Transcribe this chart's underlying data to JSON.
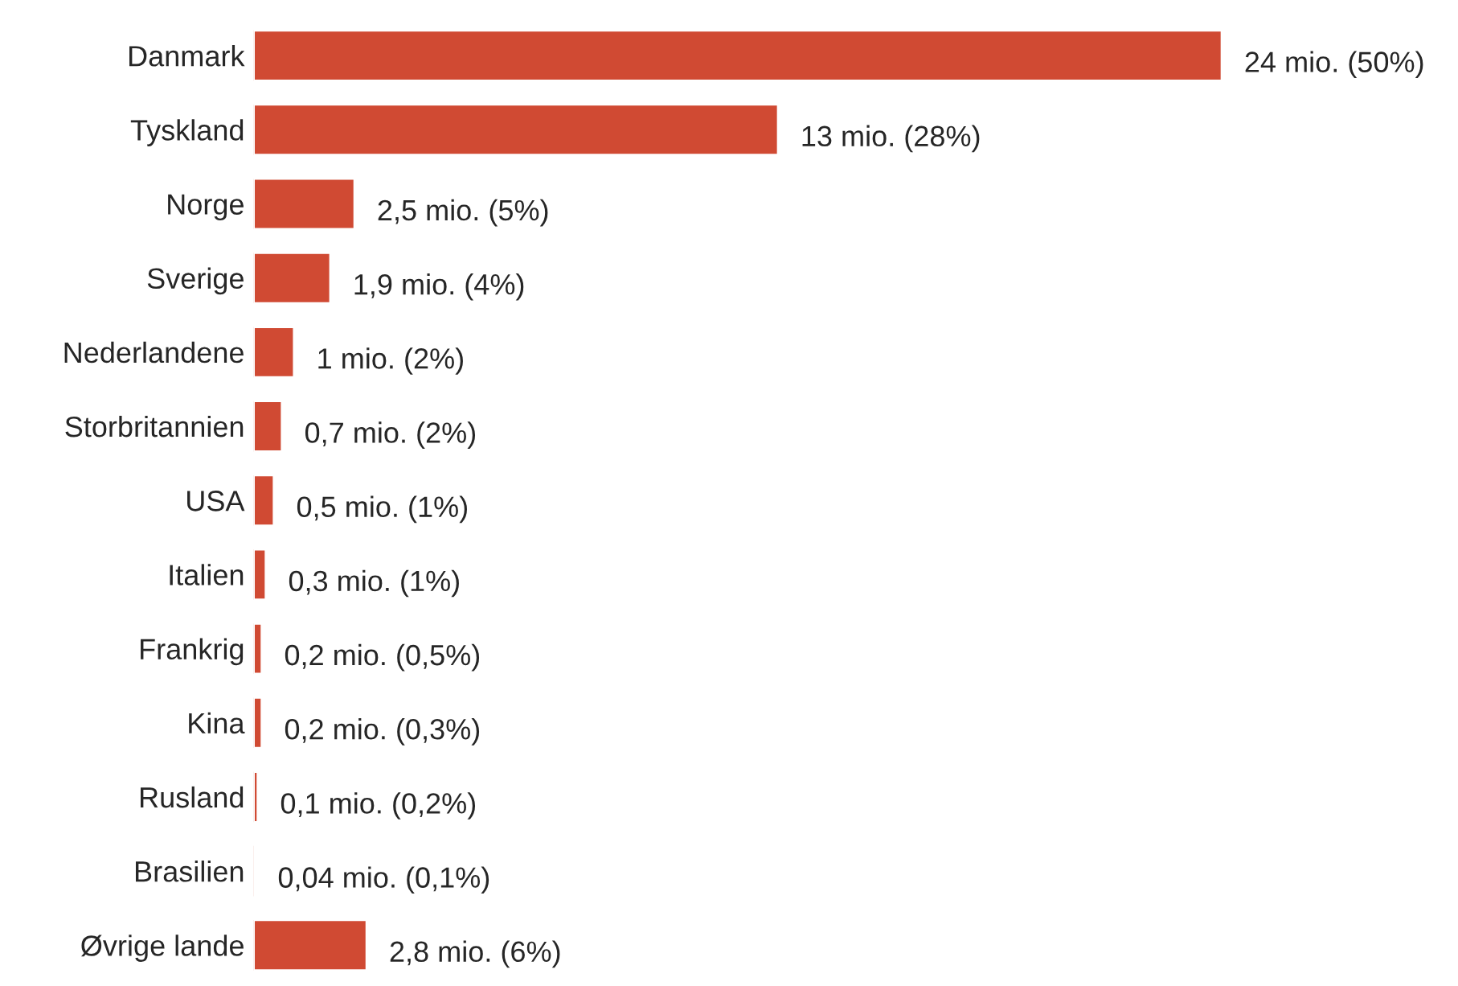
{
  "chart_data": {
    "type": "bar",
    "orientation": "horizontal",
    "categories": [
      "Danmark",
      "Tyskland",
      "Norge",
      "Sverige",
      "Nederlandene",
      "Storbritannien",
      "USA",
      "Italien",
      "Frankrig",
      "Kina",
      "Rusland",
      "Brasilien",
      "Øvrige lande"
    ],
    "values": [
      24,
      13,
      2.5,
      1.9,
      1,
      0.7,
      0.5,
      0.3,
      0.2,
      0.2,
      0.1,
      0.04,
      2.8
    ],
    "value_labels": [
      "24 mio. (50%)",
      "13 mio. (28%)",
      "2,5 mio. (5%)",
      "1,9 mio. (4%)",
      "1 mio. (2%)",
      "0,7 mio. (2%)",
      "0,5 mio. (1%)",
      "0,3 mio. (1%)",
      "0,2 mio. (0,5%)",
      "0,2 mio. (0,3%)",
      "0,1 mio. (0,2%)",
      "0,04 mio. (0,1%)",
      "2,8 mio. (6%)"
    ],
    "color": "#d04a33"
  }
}
